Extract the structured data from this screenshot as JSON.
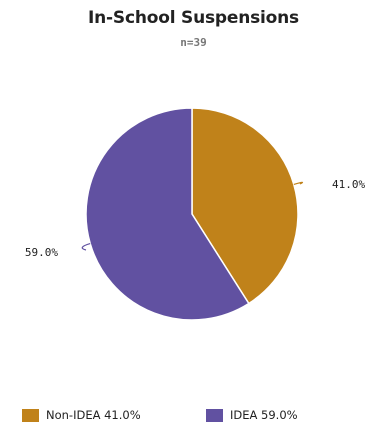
{
  "chart_data": {
    "type": "pie",
    "title": "In-School Suspensions",
    "subtitle": "n=39",
    "slices": [
      {
        "label": "Non-IDEA",
        "value": 41.0,
        "display": "41.0%",
        "color": "#c0821a"
      },
      {
        "label": "IDEA",
        "value": 59.0,
        "display": "59.0%",
        "color": "#6151a1"
      }
    ],
    "start_angle": "12 o'clock, clockwise",
    "legend_position": "bottom",
    "legend": [
      {
        "text": "Non-IDEA 41.0%",
        "color": "#c0821a"
      },
      {
        "text": "IDEA 59.0%",
        "color": "#6151a1"
      }
    ]
  }
}
